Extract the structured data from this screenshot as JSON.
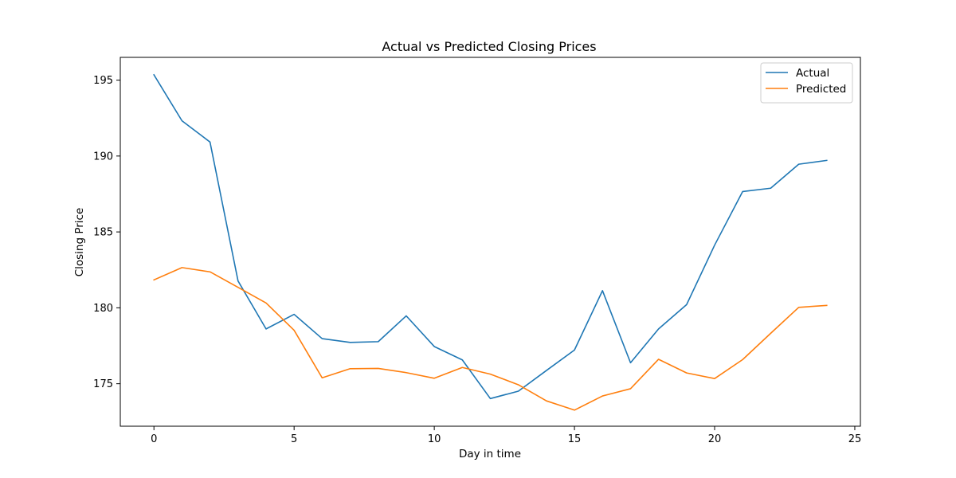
{
  "chart_data": {
    "type": "line",
    "title": "Actual vs Predicted Closing Prices",
    "xlabel": "Day in time",
    "ylabel": "Closing Price",
    "xlim": [
      -1.2,
      25.2
    ],
    "ylim": [
      172.2,
      196.5
    ],
    "xticks": [
      0,
      5,
      10,
      15,
      20,
      25
    ],
    "yticks": [
      175,
      180,
      185,
      190,
      195
    ],
    "grid": false,
    "legend_position": "top-right",
    "x": [
      0,
      1,
      2,
      3,
      4,
      5,
      6,
      7,
      8,
      9,
      10,
      11,
      12,
      13,
      14,
      15,
      16,
      17,
      18,
      19,
      20,
      21,
      22,
      23,
      24
    ],
    "series": [
      {
        "name": "Actual",
        "color": "#1f77b4",
        "values": [
          195.35,
          192.32,
          190.92,
          181.77,
          178.61,
          179.57,
          177.97,
          177.72,
          177.77,
          179.47,
          177.45,
          176.57,
          174.02,
          174.51,
          175.87,
          177.22,
          181.13,
          176.38,
          178.61,
          180.21,
          184.13,
          187.66,
          187.88,
          189.46,
          189.71
        ]
      },
      {
        "name": "Predicted",
        "color": "#ff7f0e",
        "values": [
          181.84,
          182.65,
          182.37,
          181.35,
          180.32,
          178.52,
          175.39,
          175.99,
          176.01,
          175.73,
          175.36,
          176.07,
          175.63,
          174.93,
          173.87,
          173.26,
          174.19,
          174.67,
          176.61,
          175.71,
          175.34,
          176.59,
          178.32,
          180.03,
          180.16
        ]
      }
    ]
  }
}
